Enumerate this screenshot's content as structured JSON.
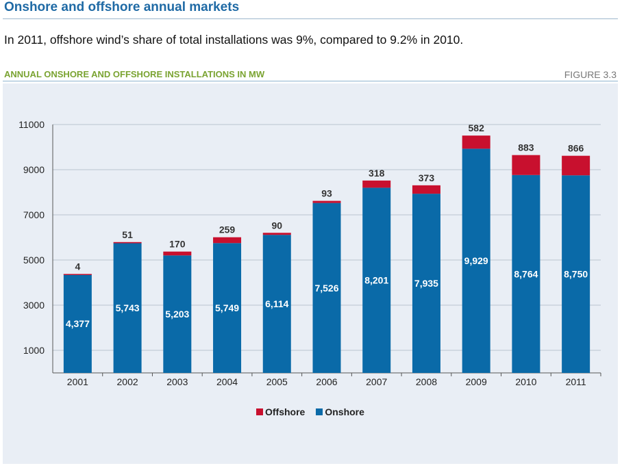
{
  "header": {
    "title": "Onshore and offshore annual markets",
    "intro": "In 2011, offshore wind’s share of total installations was 9%, compared to 9.2% in 2010."
  },
  "figure": {
    "title": "ANNUAL ONSHORE AND OFFSHORE INSTALLATIONS IN MW",
    "number": "FIGURE 3.3"
  },
  "colors": {
    "offshore": "#c8102e",
    "onshore": "#0a6aa8",
    "panel": "#e9eef5",
    "grid": "#b9c4cf"
  },
  "chart_data": {
    "type": "bar",
    "stacked": true,
    "categories": [
      "2001",
      "2002",
      "2003",
      "2004",
      "2005",
      "2006",
      "2007",
      "2008",
      "2009",
      "2010",
      "2011"
    ],
    "series": [
      {
        "name": "Onshore",
        "values": [
          4377,
          5743,
          5203,
          5749,
          6114,
          7526,
          8201,
          7935,
          9929,
          8764,
          8750
        ],
        "labels": [
          "4,377",
          "5,743",
          "5,203",
          "5,749",
          "6,114",
          "7,526",
          "8,201",
          "7,935",
          "9,929",
          "8,764",
          "8,750"
        ]
      },
      {
        "name": "Offshore",
        "values": [
          4,
          51,
          170,
          259,
          90,
          93,
          318,
          373,
          582,
          883,
          866
        ],
        "labels": [
          "4",
          "51",
          "170",
          "259",
          "90",
          "93",
          "318",
          "373",
          "582",
          "883",
          "866"
        ]
      }
    ],
    "yticks": [
      "1000",
      "3000",
      "5000",
      "7000",
      "9000",
      "11000"
    ],
    "ylim": [
      0,
      11000
    ],
    "grid": true,
    "legend_position": "bottom-center",
    "legend": [
      "Offshore",
      "Onshore"
    ]
  }
}
